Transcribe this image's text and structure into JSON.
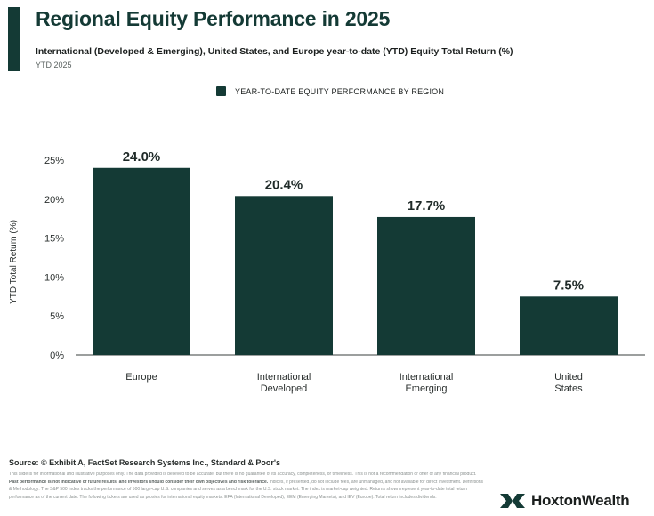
{
  "header": {
    "title": "Regional Equity Performance in 2025",
    "subtitle": "International (Developed & Emerging), United States, and Europe year-to-date (YTD) Equity Total Return (%)",
    "period": "YTD 2025"
  },
  "legend": {
    "label": "YEAR-TO-DATE EQUITY PERFORMANCE BY REGION"
  },
  "chart_data": {
    "type": "bar",
    "categories": [
      [
        "Europe"
      ],
      [
        "International",
        "Developed"
      ],
      [
        "International",
        "Emerging"
      ],
      [
        "United",
        "States"
      ]
    ],
    "series": [
      {
        "name": "YEAR-TO-DATE EQUITY PERFORMANCE BY REGION",
        "values": [
          24.0,
          20.4,
          17.7,
          7.5
        ]
      }
    ],
    "data_labels": [
      "24.0%",
      "20.4%",
      "17.7%",
      "7.5%"
    ],
    "ylabel": "YTD Total Return (%)",
    "yticks": [
      0,
      5,
      10,
      15,
      20,
      25
    ],
    "ytick_labels": [
      "0%",
      "5%",
      "10%",
      "15%",
      "20%",
      "25%"
    ],
    "ylim": [
      0,
      25
    ],
    "grid": false,
    "legend_position": "top-center",
    "bar_color": "#143a35"
  },
  "footer": {
    "source": "Source: © Exhibit A, FactSet Research Systems Inc., Standard & Poor's",
    "disclaimer_lines": [
      "This slide is for informational and illustrative purposes only. The data provided is believed to be accurate, but there is no guarantee of its accuracy, completeness, or timeliness. This is not a",
      "recommendation or offer of any financial product.",
      "Past performance is not indicative of future results, and investors should consider their own objectives and risk tolerance.",
      "Indices, if",
      "presented, do not include fees, are unmanaged, and not available for direct investment. Definitions & Methodology: The S&P 500 Index tracks the performance of 500 large-cap U.S. companies and",
      "serves as a benchmark for the U.S. stock market. The index is market-cap weighted. Returns shown represent year-to-date total return performance as of the current date. The following tickers are",
      "used as proxies for international equity markets: EFA (International Developed), EEM (Emerging Markets), and IEV (Europe). Total return includes dividends."
    ]
  },
  "brand": {
    "name": "HoxtonWealth",
    "logo_icon": "hoxton-wealth-logo-icon",
    "color": "#143a35"
  }
}
